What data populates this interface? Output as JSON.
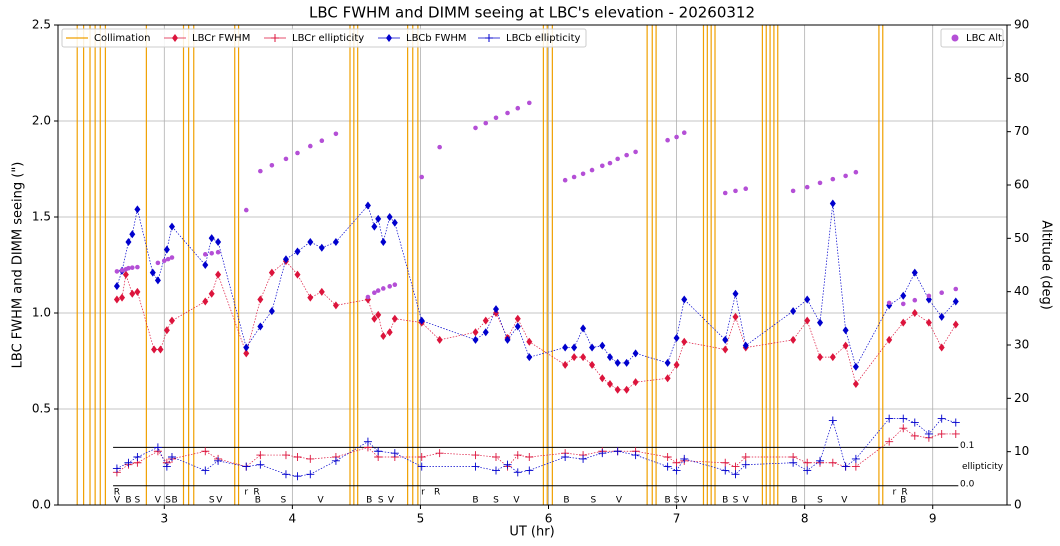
{
  "chart_data": {
    "type": "line",
    "title": "LBC FWHM and DIMM seeing at LBC's elevation - 20260312",
    "x_label": "UT (hr)",
    "y_label": "LBC FWHM and DIMM seeing (\")",
    "y2_label": "Altitude (deg)",
    "xlim": [
      2.17,
      9.58
    ],
    "xticks": [
      3,
      4,
      5,
      6,
      7,
      8,
      9
    ],
    "ylim": [
      0,
      2.5
    ],
    "yticks": [
      {
        "value": 0,
        "label": "0.0"
      },
      {
        "value": 0.5,
        "label": "0.5"
      },
      {
        "value": 1,
        "label": "1.0"
      },
      {
        "value": 1.5,
        "label": "1.5"
      },
      {
        "value": 2,
        "label": "2.0"
      },
      {
        "value": 2.5,
        "label": "2.5"
      }
    ],
    "y2lim": [
      0,
      90
    ],
    "y2ticks": [
      0,
      10,
      20,
      30,
      40,
      50,
      60,
      70,
      80,
      90
    ],
    "grid": true,
    "legend": "upper left",
    "legend2": "upper right",
    "collimation": {
      "name": "Collimation",
      "color": "#f0a000",
      "x": [
        2.32,
        2.37,
        2.42,
        2.46,
        2.5,
        2.54,
        2.86,
        3.15,
        3.19,
        3.23,
        3.55,
        3.58,
        4.45,
        4.48,
        4.51,
        4.9,
        4.94,
        4.98,
        5.96,
        5.99,
        6.03,
        6.77,
        6.81,
        6.84,
        7.21,
        7.24,
        7.27,
        7.3,
        7.67,
        7.7,
        7.73,
        7.76,
        7.79,
        8.58,
        8.61
      ]
    },
    "series": [
      {
        "name": "LBCr FWHM",
        "color": "#dc143c",
        "marker": "diamond",
        "x": [
          2.63,
          2.67,
          2.7,
          2.75,
          2.79,
          2.92,
          2.97,
          3.02,
          3.06,
          3.32,
          3.37,
          3.42,
          3.64,
          3.75,
          3.84,
          3.95,
          4.04,
          4.14,
          4.23,
          4.34,
          4.59,
          4.64,
          4.67,
          4.71,
          4.76,
          4.8,
          5.01,
          5.15,
          5.43,
          5.51,
          5.59,
          5.68,
          5.76,
          5.85,
          6.13,
          6.2,
          6.27,
          6.34,
          6.42,
          6.48,
          6.54,
          6.61,
          6.68,
          6.93,
          7.0,
          7.06,
          7.38,
          7.46,
          7.54,
          7.91,
          8.02,
          8.12,
          8.22,
          8.32,
          8.4,
          8.66,
          8.77,
          8.86,
          8.97,
          9.07,
          9.18
        ],
        "values": [
          1.07,
          1.08,
          1.2,
          1.1,
          1.11,
          0.81,
          0.81,
          0.91,
          0.96,
          1.06,
          1.1,
          1.2,
          0.79,
          1.07,
          1.21,
          1.27,
          1.2,
          1.08,
          1.11,
          1.04,
          1.07,
          0.97,
          0.99,
          0.88,
          0.9,
          0.97,
          0.95,
          0.86,
          0.9,
          0.96,
          1.0,
          0.87,
          0.97,
          0.85,
          0.73,
          0.77,
          0.77,
          0.73,
          0.66,
          0.63,
          0.6,
          0.6,
          0.64,
          0.66,
          0.73,
          0.85,
          0.81,
          0.98,
          0.82,
          0.86,
          0.96,
          0.77,
          0.77,
          0.83,
          0.63,
          0.86,
          0.95,
          1.0,
          0.95,
          0.82,
          0.94
        ]
      },
      {
        "name": "LBCr ellipticity",
        "color": "#dc143c",
        "marker": "plus",
        "x": [
          2.63,
          2.72,
          2.79,
          2.95,
          3.02,
          3.06,
          3.32,
          3.42,
          3.64,
          3.75,
          3.95,
          4.04,
          4.14,
          4.34,
          4.59,
          4.67,
          4.8,
          5.01,
          5.15,
          5.43,
          5.59,
          5.68,
          5.76,
          5.85,
          6.13,
          6.27,
          6.42,
          6.54,
          6.68,
          6.93,
          7.0,
          7.06,
          7.38,
          7.46,
          7.54,
          7.91,
          8.02,
          8.12,
          8.22,
          8.32,
          8.4,
          8.66,
          8.77,
          8.86,
          8.97,
          9.07,
          9.18
        ],
        "values": [
          0.17,
          0.21,
          0.22,
          0.28,
          0.22,
          0.24,
          0.28,
          0.24,
          0.2,
          0.26,
          0.26,
          0.25,
          0.24,
          0.25,
          0.3,
          0.25,
          0.25,
          0.25,
          0.27,
          0.26,
          0.25,
          0.2,
          0.26,
          0.25,
          0.27,
          0.26,
          0.28,
          0.28,
          0.28,
          0.25,
          0.22,
          0.23,
          0.22,
          0.2,
          0.25,
          0.25,
          0.22,
          0.22,
          0.22,
          0.2,
          0.2,
          0.33,
          0.4,
          0.36,
          0.35,
          0.37,
          0.37
        ]
      },
      {
        "name": "LBCb FWHM",
        "color": "#0000cd",
        "marker": "diamond",
        "x": [
          2.63,
          2.67,
          2.72,
          2.75,
          2.79,
          2.91,
          2.95,
          3.02,
          3.06,
          3.32,
          3.37,
          3.42,
          3.64,
          3.75,
          3.84,
          3.95,
          4.04,
          4.14,
          4.23,
          4.34,
          4.59,
          4.64,
          4.67,
          4.71,
          4.76,
          4.8,
          5.01,
          5.43,
          5.51,
          5.59,
          5.68,
          5.76,
          5.85,
          6.13,
          6.2,
          6.27,
          6.34,
          6.42,
          6.48,
          6.54,
          6.61,
          6.68,
          6.93,
          7.0,
          7.06,
          7.38,
          7.46,
          7.54,
          7.91,
          8.02,
          8.12,
          8.22,
          8.32,
          8.4,
          8.66,
          8.77,
          8.86,
          8.97,
          9.07,
          9.18
        ],
        "values": [
          1.14,
          1.22,
          1.37,
          1.41,
          1.54,
          1.21,
          1.17,
          1.33,
          1.45,
          1.25,
          1.39,
          1.37,
          0.82,
          0.93,
          1.01,
          1.28,
          1.32,
          1.37,
          1.34,
          1.37,
          1.56,
          1.45,
          1.49,
          1.37,
          1.5,
          1.47,
          0.96,
          0.86,
          0.9,
          1.02,
          0.86,
          0.93,
          0.77,
          0.82,
          0.82,
          0.92,
          0.82,
          0.83,
          0.77,
          0.74,
          0.74,
          0.79,
          0.74,
          0.87,
          1.07,
          0.86,
          1.1,
          0.83,
          1.01,
          1.07,
          0.95,
          1.57,
          0.91,
          0.72,
          1.04,
          1.09,
          1.21,
          1.07,
          0.98,
          1.06
        ]
      },
      {
        "name": "LBCb ellipticity",
        "color": "#0000cd",
        "marker": "plus",
        "x": [
          2.63,
          2.72,
          2.79,
          2.95,
          3.02,
          3.06,
          3.32,
          3.42,
          3.64,
          3.75,
          3.95,
          4.04,
          4.14,
          4.34,
          4.59,
          4.67,
          4.8,
          5.01,
          5.43,
          5.59,
          5.68,
          5.76,
          5.85,
          6.13,
          6.27,
          6.42,
          6.54,
          6.68,
          6.93,
          7.0,
          7.06,
          7.38,
          7.46,
          7.54,
          7.91,
          8.02,
          8.12,
          8.22,
          8.32,
          8.4,
          8.66,
          8.77,
          8.86,
          8.97,
          9.07,
          9.18
        ],
        "values": [
          0.19,
          0.22,
          0.25,
          0.3,
          0.2,
          0.25,
          0.18,
          0.23,
          0.2,
          0.21,
          0.16,
          0.15,
          0.16,
          0.23,
          0.33,
          0.28,
          0.27,
          0.2,
          0.2,
          0.18,
          0.21,
          0.17,
          0.18,
          0.25,
          0.24,
          0.27,
          0.28,
          0.26,
          0.2,
          0.18,
          0.24,
          0.18,
          0.16,
          0.21,
          0.22,
          0.18,
          0.23,
          0.44,
          0.2,
          0.24,
          0.45,
          0.45,
          0.43,
          0.37,
          0.45,
          0.43
        ]
      },
      {
        "name": "LBC Alt.",
        "color": "#b44fd6",
        "marker": "circle",
        "axis": "y2",
        "x": [
          2.63,
          2.67,
          2.7,
          2.72,
          2.75,
          2.79,
          2.95,
          3.0,
          3.03,
          3.06,
          3.32,
          3.37,
          3.42,
          3.64,
          3.75,
          3.84,
          3.95,
          4.04,
          4.14,
          4.23,
          4.34,
          4.59,
          4.64,
          4.67,
          4.71,
          4.76,
          4.8,
          5.01,
          5.15,
          5.43,
          5.51,
          5.59,
          5.68,
          5.76,
          5.85,
          6.13,
          6.2,
          6.27,
          6.34,
          6.42,
          6.48,
          6.54,
          6.61,
          6.68,
          6.93,
          7.0,
          7.06,
          7.38,
          7.46,
          7.54,
          7.91,
          8.02,
          8.12,
          8.22,
          8.32,
          8.4,
          8.66,
          8.77,
          8.86,
          8.97,
          9.07,
          9.18
        ],
        "values": [
          43.8,
          44.0,
          44.2,
          44.4,
          44.5,
          44.6,
          45.4,
          45.8,
          46.1,
          46.4,
          47.0,
          47.2,
          47.4,
          55.3,
          62.6,
          63.7,
          64.9,
          66.0,
          67.3,
          68.3,
          69.6,
          39.0,
          39.8,
          40.2,
          40.6,
          41.0,
          41.3,
          61.5,
          67.1,
          70.7,
          71.6,
          72.6,
          73.5,
          74.4,
          75.4,
          60.9,
          61.5,
          62.1,
          62.8,
          63.6,
          64.1,
          64.9,
          65.6,
          66.2,
          68.4,
          69.0,
          69.8,
          58.5,
          58.9,
          59.3,
          58.9,
          59.6,
          60.4,
          61.1,
          61.7,
          62.4,
          37.9,
          37.7,
          38.4,
          39.2,
          39.8,
          40.5
        ]
      }
    ],
    "reference_lines": [
      {
        "value": 0.3,
        "label": "0.1"
      },
      {
        "value": 0.1,
        "label": "0.0"
      }
    ],
    "reference_title": "ellipticity",
    "filter_labels": {
      "red": {
        "color": "#dc143c",
        "items": [
          {
            "x": 2.63,
            "label": "R"
          },
          {
            "x": 3.64,
            "label": "r"
          },
          {
            "x": 3.72,
            "label": "R"
          },
          {
            "x": 5.02,
            "label": "r"
          },
          {
            "x": 5.13,
            "label": "R"
          },
          {
            "x": 8.7,
            "label": "r"
          },
          {
            "x": 8.78,
            "label": "R"
          }
        ]
      },
      "blue": {
        "color": "#0000cd",
        "items": [
          {
            "x": 2.63,
            "label": "V"
          },
          {
            "x": 2.72,
            "label": "B"
          },
          {
            "x": 2.79,
            "label": "S"
          },
          {
            "x": 2.95,
            "label": "V"
          },
          {
            "x": 3.03,
            "label": "S"
          },
          {
            "x": 3.08,
            "label": "B"
          },
          {
            "x": 3.37,
            "label": "S"
          },
          {
            "x": 3.43,
            "label": "V"
          },
          {
            "x": 3.73,
            "label": "B"
          },
          {
            "x": 3.93,
            "label": "S"
          },
          {
            "x": 4.22,
            "label": "V"
          },
          {
            "x": 4.6,
            "label": "B"
          },
          {
            "x": 4.69,
            "label": "S"
          },
          {
            "x": 4.77,
            "label": "V"
          },
          {
            "x": 5.43,
            "label": "B"
          },
          {
            "x": 5.59,
            "label": "S"
          },
          {
            "x": 5.75,
            "label": "V"
          },
          {
            "x": 6.14,
            "label": "B"
          },
          {
            "x": 6.35,
            "label": "S"
          },
          {
            "x": 6.55,
            "label": "V"
          },
          {
            "x": 6.93,
            "label": "B"
          },
          {
            "x": 7.0,
            "label": "S"
          },
          {
            "x": 7.06,
            "label": "V"
          },
          {
            "x": 7.38,
            "label": "B"
          },
          {
            "x": 7.46,
            "label": "S"
          },
          {
            "x": 7.54,
            "label": "V"
          },
          {
            "x": 7.92,
            "label": "B"
          },
          {
            "x": 8.12,
            "label": "S"
          },
          {
            "x": 8.31,
            "label": "V"
          },
          {
            "x": 8.77,
            "label": "B"
          }
        ]
      }
    }
  }
}
